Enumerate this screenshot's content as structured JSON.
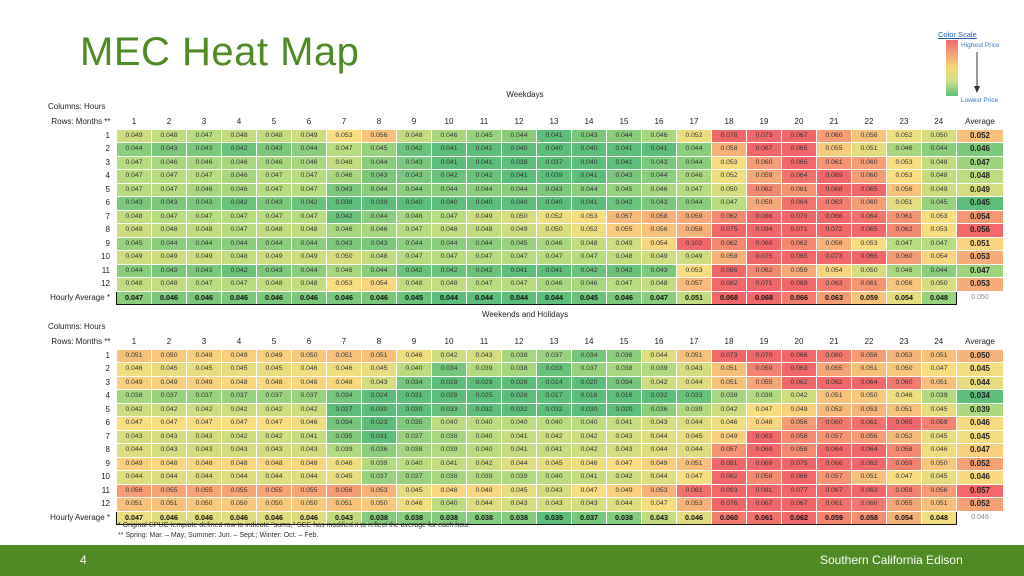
{
  "title": "MEC Heat Map",
  "legend": {
    "title": "Color Scale",
    "high": "Highest Price",
    "low": "Lowest Price"
  },
  "header_labels": {
    "columns": "Columns:  Hours",
    "rows": "Rows:  Months **",
    "average": "Average",
    "hourly_average": "Hourly Average *"
  },
  "hours": [
    "1",
    "2",
    "3",
    "4",
    "5",
    "6",
    "7",
    "8",
    "9",
    "10",
    "11",
    "12",
    "13",
    "14",
    "15",
    "16",
    "17",
    "18",
    "19",
    "20",
    "21",
    "22",
    "23",
    "24"
  ],
  "weekdays": {
    "title": "Weekdays",
    "rows": [
      {
        "month": "1",
        "values": [
          "0.049",
          "0.048",
          "0.047",
          "0.048",
          "0.048",
          "0.049",
          "0.053",
          "0.056",
          "0.048",
          "0.046",
          "0.045",
          "0.044",
          "0.041",
          "0.043",
          "0.044",
          "0.046",
          "0.052",
          "0.078",
          "0.073",
          "0.067",
          "0.060",
          "0.056",
          "0.052",
          "0.050"
        ],
        "avg": "0.052"
      },
      {
        "month": "2",
        "values": [
          "0.044",
          "0.043",
          "0.043",
          "0.042",
          "0.043",
          "0.044",
          "0.047",
          "0.045",
          "0.042",
          "0.041",
          "0.041",
          "0.040",
          "0.040",
          "0.040",
          "0.041",
          "0.041",
          "0.044",
          "0.058",
          "0.067",
          "0.065",
          "0.055",
          "0.051",
          "0.046",
          "0.044"
        ],
        "avg": "0.046"
      },
      {
        "month": "3",
        "values": [
          "0.047",
          "0.046",
          "0.046",
          "0.046",
          "0.046",
          "0.046",
          "0.048",
          "0.044",
          "0.043",
          "0.041",
          "0.041",
          "0.038",
          "0.037",
          "0.040",
          "0.041",
          "0.043",
          "0.044",
          "0.053",
          "0.060",
          "0.065",
          "0.061",
          "0.060",
          "0.053",
          "0.048"
        ],
        "avg": "0.047"
      },
      {
        "month": "4",
        "values": [
          "0.047",
          "0.047",
          "0.047",
          "0.046",
          "0.047",
          "0.047",
          "0.046",
          "0.043",
          "0.043",
          "0.042",
          "0.042",
          "0.041",
          "0.039",
          "0.041",
          "0.043",
          "0.044",
          "0.046",
          "0.052",
          "0.059",
          "0.064",
          "0.069",
          "0.060",
          "0.053",
          "0.048"
        ],
        "avg": "0.048"
      },
      {
        "month": "5",
        "values": [
          "0.047",
          "0.047",
          "0.046",
          "0.046",
          "0.047",
          "0.047",
          "0.043",
          "0.044",
          "0.044",
          "0.044",
          "0.044",
          "0.044",
          "0.043",
          "0.044",
          "0.045",
          "0.046",
          "0.047",
          "0.050",
          "0.062",
          "0.061",
          "0.068",
          "0.065",
          "0.056",
          "0.049"
        ],
        "avg": "0.049"
      },
      {
        "month": "6",
        "values": [
          "0.043",
          "0.043",
          "0.043",
          "0.042",
          "0.043",
          "0.042",
          "0.038",
          "0.039",
          "0.040",
          "0.040",
          "0.040",
          "0.040",
          "0.040",
          "0.041",
          "0.042",
          "0.043",
          "0.044",
          "0.047",
          "0.059",
          "0.064",
          "0.063",
          "0.060",
          "0.051",
          "0.045"
        ],
        "avg": "0.045"
      },
      {
        "month": "7",
        "values": [
          "0.048",
          "0.047",
          "0.047",
          "0.047",
          "0.047",
          "0.047",
          "0.042",
          "0.044",
          "0.046",
          "0.047",
          "0.049",
          "0.050",
          "0.052",
          "0.053",
          "0.057",
          "0.058",
          "0.059",
          "0.062",
          "0.086",
          "0.070",
          "0.068",
          "0.064",
          "0.061",
          "0.053"
        ],
        "avg": "0.054"
      },
      {
        "month": "8",
        "values": [
          "0.049",
          "0.048",
          "0.048",
          "0.047",
          "0.048",
          "0.048",
          "0.046",
          "0.046",
          "0.047",
          "0.048",
          "0.048",
          "0.049",
          "0.050",
          "0.052",
          "0.055",
          "0.056",
          "0.058",
          "0.075",
          "0.094",
          "0.071",
          "0.072",
          "0.065",
          "0.062",
          "0.053"
        ],
        "avg": "0.056"
      },
      {
        "month": "9",
        "values": [
          "0.045",
          "0.044",
          "0.044",
          "0.044",
          "0.044",
          "0.044",
          "0.043",
          "0.043",
          "0.044",
          "0.044",
          "0.044",
          "0.045",
          "0.046",
          "0.048",
          "0.049",
          "0.054",
          "0.102",
          "0.062",
          "0.068",
          "0.062",
          "0.058",
          "0.053",
          "0.047",
          "0.047"
        ],
        "avg": "0.051"
      },
      {
        "month": "10",
        "values": [
          "0.049",
          "0.049",
          "0.049",
          "0.048",
          "0.049",
          "0.049",
          "0.050",
          "0.048",
          "0.047",
          "0.047",
          "0.047",
          "0.047",
          "0.047",
          "0.047",
          "0.048",
          "0.049",
          "0.049",
          "0.058",
          "0.075",
          "0.065",
          "0.073",
          "0.065",
          "0.060",
          "0.054"
        ],
        "avg": "0.053"
      },
      {
        "month": "11",
        "values": [
          "0.044",
          "0.043",
          "0.043",
          "0.042",
          "0.043",
          "0.044",
          "0.046",
          "0.044",
          "0.042",
          "0.042",
          "0.042",
          "0.041",
          "0.041",
          "0.042",
          "0.042",
          "0.043",
          "0.053",
          "0.086",
          "0.062",
          "0.059",
          "0.054",
          "0.050",
          "0.046",
          "0.044"
        ],
        "avg": "0.047"
      },
      {
        "month": "12",
        "values": [
          "0.048",
          "0.048",
          "0.047",
          "0.047",
          "0.048",
          "0.048",
          "0.053",
          "0.054",
          "0.048",
          "0.048",
          "0.047",
          "0.047",
          "0.046",
          "0.046",
          "0.047",
          "0.048",
          "0.057",
          "0.082",
          "0.071",
          "0.069",
          "0.063",
          "0.061",
          "0.056",
          "0.050"
        ],
        "avg": "0.053"
      }
    ],
    "hourly": [
      "0.047",
      "0.046",
      "0.046",
      "0.046",
      "0.046",
      "0.046",
      "0.046",
      "0.046",
      "0.045",
      "0.044",
      "0.044",
      "0.044",
      "0.044",
      "0.045",
      "0.046",
      "0.047",
      "0.051",
      "0.068",
      "0.068",
      "0.066",
      "0.063",
      "0.059",
      "0.054",
      "0.048"
    ],
    "overall": "0.050"
  },
  "weekends": {
    "title": "Weekends and Holidays",
    "rows": [
      {
        "month": "1",
        "values": [
          "0.051",
          "0.050",
          "0.049",
          "0.049",
          "0.049",
          "0.050",
          "0.051",
          "0.051",
          "0.046",
          "0.042",
          "0.043",
          "0.038",
          "0.037",
          "0.034",
          "0.036",
          "0.044",
          "0.051",
          "0.073",
          "0.070",
          "0.066",
          "0.060",
          "0.056",
          "0.053",
          "0.051"
        ],
        "avg": "0.050"
      },
      {
        "month": "2",
        "values": [
          "0.046",
          "0.045",
          "0.045",
          "0.045",
          "0.045",
          "0.046",
          "0.046",
          "0.045",
          "0.040",
          "0.034",
          "0.039",
          "0.038",
          "0.033",
          "0.037",
          "0.038",
          "0.039",
          "0.043",
          "0.051",
          "0.059",
          "0.063",
          "0.055",
          "0.051",
          "0.050",
          "0.047"
        ],
        "avg": "0.045"
      },
      {
        "month": "3",
        "values": [
          "0.049",
          "0.049",
          "0.049",
          "0.048",
          "0.048",
          "0.048",
          "0.048",
          "0.043",
          "0.034",
          "0.028",
          "0.029",
          "0.028",
          "0.014",
          "0.020",
          "0.034",
          "0.042",
          "0.044",
          "0.051",
          "0.055",
          "0.062",
          "0.062",
          "0.064",
          "0.060",
          "0.051"
        ],
        "avg": "0.044"
      },
      {
        "month": "4",
        "values": [
          "0.038",
          "0.037",
          "0.037",
          "0.037",
          "0.037",
          "0.037",
          "0.034",
          "0.024",
          "0.031",
          "0.028",
          "0.025",
          "0.028",
          "0.017",
          "0.016",
          "0.016",
          "0.032",
          "0.033",
          "0.038",
          "0.039",
          "0.042",
          "0.051",
          "0.050",
          "0.046",
          "0.039"
        ],
        "avg": "0.034"
      },
      {
        "month": "5",
        "values": [
          "0.042",
          "0.042",
          "0.042",
          "0.042",
          "0.042",
          "0.042",
          "0.027",
          "0.030",
          "0.030",
          "0.033",
          "0.032",
          "0.032",
          "0.032",
          "0.030",
          "0.020",
          "0.036",
          "0.039",
          "0.042",
          "0.047",
          "0.049",
          "0.052",
          "0.053",
          "0.051",
          "0.045"
        ],
        "avg": "0.039"
      },
      {
        "month": "6",
        "values": [
          "0.047",
          "0.047",
          "0.047",
          "0.047",
          "0.047",
          "0.046",
          "0.034",
          "0.023",
          "0.035",
          "0.040",
          "0.040",
          "0.040",
          "0.040",
          "0.040",
          "0.041",
          "0.043",
          "0.044",
          "0.046",
          "0.048",
          "0.056",
          "0.060",
          "0.061",
          "0.065",
          "0.059"
        ],
        "avg": "0.046"
      },
      {
        "month": "7",
        "values": [
          "0.043",
          "0.043",
          "0.043",
          "0.042",
          "0.042",
          "0.041",
          "0.035",
          "0.031",
          "0.037",
          "0.038",
          "0.040",
          "0.041",
          "0.042",
          "0.042",
          "0.043",
          "0.044",
          "0.045",
          "0.049",
          "0.063",
          "0.058",
          "0.057",
          "0.056",
          "0.052",
          "0.045"
        ],
        "avg": "0.045"
      },
      {
        "month": "8",
        "values": [
          "0.044",
          "0.043",
          "0.043",
          "0.043",
          "0.043",
          "0.043",
          "0.039",
          "0.036",
          "0.038",
          "0.039",
          "0.040",
          "0.041",
          "0.041",
          "0.042",
          "0.043",
          "0.044",
          "0.044",
          "0.057",
          "0.069",
          "0.058",
          "0.064",
          "0.064",
          "0.058",
          "0.046"
        ],
        "avg": "0.047"
      },
      {
        "month": "9",
        "values": [
          "0.049",
          "0.048",
          "0.048",
          "0.048",
          "0.048",
          "0.048",
          "0.046",
          "0.039",
          "0.040",
          "0.041",
          "0.042",
          "0.044",
          "0.045",
          "0.046",
          "0.047",
          "0.049",
          "0.051",
          "0.081",
          "0.069",
          "0.075",
          "0.066",
          "0.062",
          "0.059",
          "0.050"
        ],
        "avg": "0.052"
      },
      {
        "month": "10",
        "values": [
          "0.044",
          "0.044",
          "0.044",
          "0.044",
          "0.044",
          "0.044",
          "0.045",
          "0.037",
          "0.037",
          "0.038",
          "0.039",
          "0.039",
          "0.040",
          "0.041",
          "0.042",
          "0.044",
          "0.047",
          "0.062",
          "0.058",
          "0.066",
          "0.057",
          "0.051",
          "0.047",
          "0.045"
        ],
        "avg": "0.046"
      },
      {
        "month": "11",
        "values": [
          "0.056",
          "0.055",
          "0.055",
          "0.055",
          "0.055",
          "0.055",
          "0.056",
          "0.053",
          "0.045",
          "0.048",
          "0.048",
          "0.045",
          "0.043",
          "0.047",
          "0.049",
          "0.053",
          "0.061",
          "0.093",
          "0.081",
          "0.077",
          "0.067",
          "0.063",
          "0.059",
          "0.056"
        ],
        "avg": "0.057"
      },
      {
        "month": "12",
        "values": [
          "0.051",
          "0.051",
          "0.050",
          "0.050",
          "0.050",
          "0.050",
          "0.051",
          "0.050",
          "0.046",
          "0.040",
          "0.044",
          "0.043",
          "0.043",
          "0.043",
          "0.044",
          "0.047",
          "0.053",
          "0.076",
          "0.067",
          "0.067",
          "0.061",
          "0.060",
          "0.055",
          "0.051"
        ],
        "avg": "0.052"
      }
    ],
    "hourly": [
      "0.047",
      "0.046",
      "0.046",
      "0.046",
      "0.046",
      "0.046",
      "0.043",
      "0.038",
      "0.038",
      "0.038",
      "0.038",
      "0.038",
      "0.035",
      "0.037",
      "0.038",
      "0.043",
      "0.046",
      "0.060",
      "0.061",
      "0.062",
      "0.059",
      "0.058",
      "0.054",
      "0.048"
    ],
    "overall": "0.046"
  },
  "footnotes": [
    "* Original CPUC template defined row to indicate \"sums,\" SCE has modified it to reflect the average for each hour",
    "**  Spring:  Mar. – May; Summer:  Jun. – Sept.; Winter:  Oct. – Feb."
  ],
  "page_number": "4",
  "company": "Southern California Edison",
  "colors": {
    "brand_green": "#4f8a24",
    "high": "#f26b6b",
    "mid": "#f8d878",
    "low": "#5cc07a"
  }
}
